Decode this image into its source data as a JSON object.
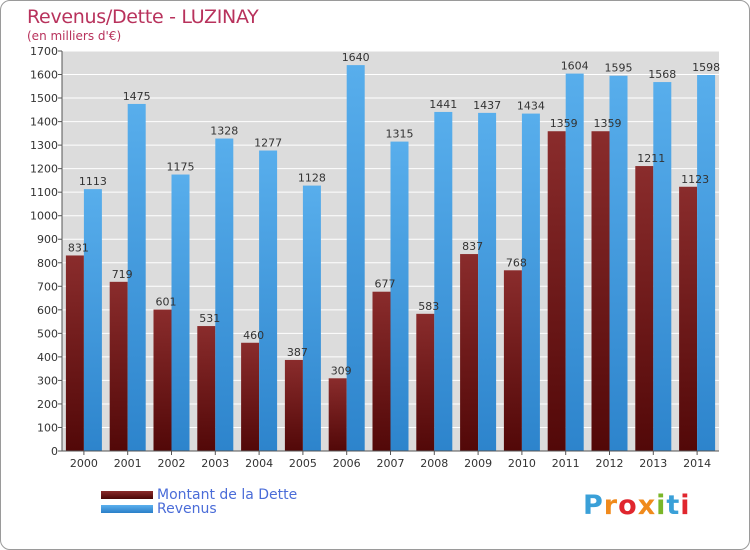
{
  "chart_data": {
    "type": "bar",
    "title": "Revenus/Dette - LUZINAY",
    "subtitle": "(en milliers d'€)",
    "categories": [
      "2000",
      "2001",
      "2002",
      "2003",
      "2004",
      "2005",
      "2006",
      "2007",
      "2008",
      "2009",
      "2010",
      "2011",
      "2012",
      "2013",
      "2014"
    ],
    "series": [
      {
        "name": "Montant de la Dette",
        "color": "#7a1f1f",
        "labels": [
          "831",
          "719",
          "601",
          "531",
          "460",
          "387",
          "309",
          "677",
          "583",
          "837",
          "768",
          "1359",
          "1359",
          "1211",
          "1123"
        ],
        "values": [
          831,
          719,
          601,
          531,
          460,
          387,
          309,
          677,
          583,
          837,
          768,
          1359,
          1359,
          1211,
          1123
        ]
      },
      {
        "name": "Revenus",
        "color": "#3a94de",
        "labels": [
          "1113",
          "1475",
          "1175",
          "1328",
          "1277",
          "1128",
          "1640",
          "1315",
          "1441",
          "1437",
          "1434",
          "1604",
          "1595",
          "1568",
          "1598"
        ],
        "values": [
          1113,
          1475,
          1175,
          1328,
          1277,
          1128,
          1640,
          1315,
          1441,
          1437,
          1434,
          1604,
          1595,
          1568,
          1598
        ]
      }
    ],
    "yticks": [
      0,
      100,
      200,
      300,
      400,
      500,
      600,
      700,
      800,
      900,
      1000,
      1100,
      1200,
      1300,
      1400,
      1500,
      1600,
      1700
    ],
    "ylim": [
      0,
      1700
    ],
    "grid": true,
    "legend_position": "bottom-left",
    "background": "#dcdcdc",
    "grid_color": "#ffffff"
  },
  "legend": {
    "debt_label": "Montant de la Dette",
    "revenue_label": "Revenus"
  },
  "logo": {
    "letters": [
      "P",
      "r",
      "o",
      "x",
      "i",
      "t",
      "i"
    ],
    "colors": [
      "#3aa0d8",
      "#f08a1c",
      "#e0262e",
      "#f08a1c",
      "#7ab628",
      "#3aa0d8",
      "#e0262e"
    ]
  }
}
